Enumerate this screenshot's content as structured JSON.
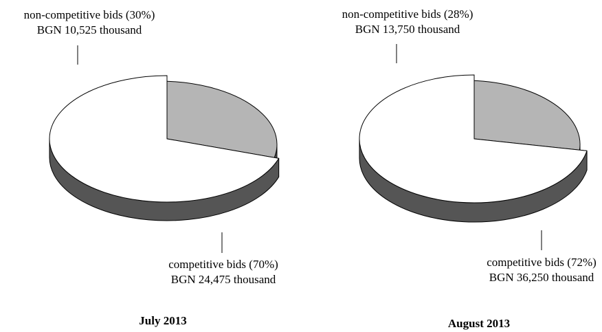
{
  "chart_data": [
    {
      "type": "pie",
      "title": "July 2013",
      "colors": {
        "top": "#ffffff",
        "bottom": "#b5b5b5",
        "side": "#555555"
      },
      "slices": [
        {
          "value": 30,
          "value_unit": "%",
          "amount": 10525,
          "amount_unit": "BGN thousand",
          "label_line1": "non-competitive bids (30%)",
          "label_line2": "BGN 10,525 thousand",
          "exploded": true
        },
        {
          "value": 70,
          "value_unit": "%",
          "amount": 24475,
          "amount_unit": "BGN thousand",
          "label_line1": "competitive bids (70%)",
          "label_line2": "BGN 24,475 thousand",
          "exploded": false
        }
      ]
    },
    {
      "type": "pie",
      "title": "August 2013",
      "colors": {
        "top": "#ffffff",
        "bottom": "#b5b5b5",
        "side": "#555555"
      },
      "slices": [
        {
          "value": 28,
          "value_unit": "%",
          "amount": 13750,
          "amount_unit": "BGN thousand",
          "label_line1": "non-competitive bids (28%)",
          "label_line2": "BGN 13,750 thousand",
          "exploded": true
        },
        {
          "value": 72,
          "value_unit": "%",
          "amount": 36250,
          "amount_unit": "BGN thousand",
          "label_line1": "competitive bids (72%)",
          "label_line2": "BGN 36,250 thousand",
          "exploded": false
        }
      ]
    }
  ]
}
